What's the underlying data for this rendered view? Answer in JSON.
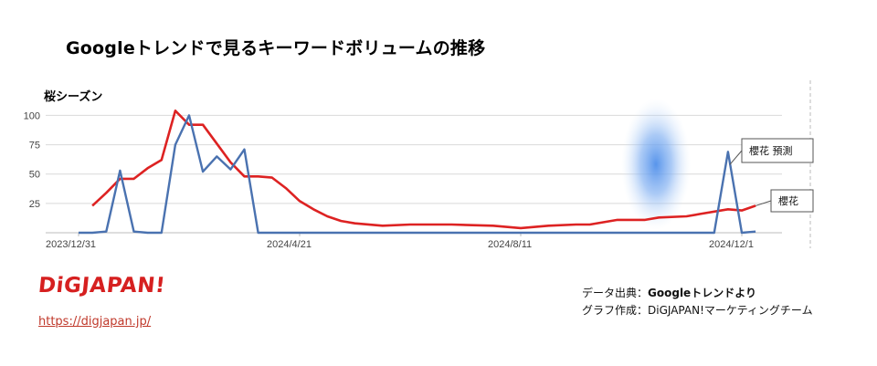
{
  "page": {
    "title": "Googleトレンドで見るキーワードボリュームの推移",
    "logo_text": "DiGJAPAN!",
    "url_text": "https://digjapan.jp/",
    "source_label": "データ出典：",
    "source_value": "Googleトレンドより",
    "author_label": "グラフ作成：",
    "author_value": "DiGJAPAN!マーケティングチーム"
  },
  "chart_data": {
    "type": "line",
    "title": "桜シーズン",
    "x_tick_labels": [
      "2023/12/31",
      "2024/4/21",
      "2024/8/11",
      "2024/12/1"
    ],
    "y_ticks": [
      25,
      50,
      75,
      100
    ],
    "ylim": [
      0,
      105
    ],
    "grid": true,
    "highlight": "blue glow around late Oct 2024",
    "series": [
      {
        "name": "櫻花 預測",
        "color": "#4a72b0",
        "callout": "櫻花 預測",
        "x": [
          "2023/12/31",
          "2024/1/7",
          "2024/1/14",
          "2024/1/21",
          "2024/1/28",
          "2024/2/4",
          "2024/2/11",
          "2024/2/18",
          "2024/2/25",
          "2024/3/3",
          "2024/3/10",
          "2024/3/17",
          "2024/3/24",
          "2024/3/31",
          "2024/4/7",
          "2024/4/21",
          "2024/6/2",
          "2024/7/14",
          "2024/8/11",
          "2024/9/8",
          "2024/10/6",
          "2024/11/3",
          "2024/11/17",
          "2024/11/24",
          "2024/12/1",
          "2024/12/8"
        ],
        "values": [
          0,
          0,
          1,
          53,
          1,
          0,
          0,
          75,
          100,
          52,
          65,
          54,
          71,
          0,
          0,
          0,
          0,
          0,
          0,
          0,
          0,
          0,
          0,
          69,
          0,
          1
        ]
      },
      {
        "name": "櫻花",
        "color": "#dd2222",
        "callout": "櫻花",
        "x": [
          "2024/1/7",
          "2024/1/14",
          "2024/1/21",
          "2024/1/28",
          "2024/2/4",
          "2024/2/11",
          "2024/2/18",
          "2024/2/25",
          "2024/3/3",
          "2024/3/10",
          "2024/3/17",
          "2024/3/24",
          "2024/3/31",
          "2024/4/7",
          "2024/4/14",
          "2024/4/21",
          "2024/4/28",
          "2024/5/5",
          "2024/5/12",
          "2024/5/19",
          "2024/6/2",
          "2024/6/16",
          "2024/7/7",
          "2024/7/28",
          "2024/8/11",
          "2024/8/25",
          "2024/9/8",
          "2024/9/15",
          "2024/9/29",
          "2024/10/13",
          "2024/10/20",
          "2024/11/3",
          "2024/11/10",
          "2024/11/24",
          "2024/12/1",
          "2024/12/8"
        ],
        "values": [
          23,
          34,
          46,
          46,
          55,
          62,
          104,
          92,
          92,
          76,
          60,
          48,
          48,
          47,
          38,
          27,
          20,
          14,
          10,
          8,
          6,
          7,
          7,
          6,
          4,
          6,
          7,
          7,
          11,
          11,
          13,
          14,
          16,
          20,
          19,
          23
        ]
      }
    ]
  }
}
